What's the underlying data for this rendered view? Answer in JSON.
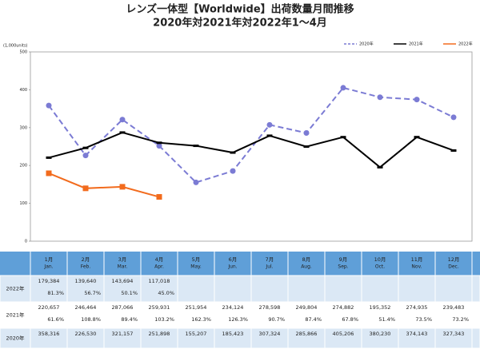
{
  "chart_data": {
    "type": "line",
    "title": "レンズ一体型【Worldwide】出荷数量月間推移",
    "subtitle": "2020年対2021年対2022年1～4月",
    "y_unit_label": "(1,000units)",
    "categories": [
      "1月",
      "2月",
      "3月",
      "4月",
      "5月",
      "6月",
      "7月",
      "8月",
      "9月",
      "10月",
      "11月",
      "12月"
    ],
    "categories_en": [
      "Jan.",
      "Feb.",
      "Mar.",
      "Apr.",
      "May.",
      "Jun.",
      "Jul.",
      "Aug.",
      "Sep.",
      "Oct.",
      "Nov.",
      "Dec."
    ],
    "ylim": [
      0,
      500
    ],
    "yticks": [
      0,
      100,
      200,
      300,
      400,
      500
    ],
    "grid": false,
    "legend": "top-right",
    "series": [
      {
        "name": "2020年",
        "color": "#7b7bd4",
        "dash": true,
        "marker": "circle",
        "values": [
          358.316,
          226.53,
          321.157,
          251.898,
          155.207,
          185.423,
          307.324,
          285.866,
          405.206,
          380.23,
          374.143,
          327.343
        ],
        "value_labels": [
          "358,316",
          "226,530",
          "321,157",
          "251,898",
          "155,207",
          "185,423",
          "307,324",
          "285,866",
          "405,206",
          "380,230",
          "374,143",
          "327,343"
        ]
      },
      {
        "name": "2021年",
        "color": "#000000",
        "dash": false,
        "marker": "dash",
        "values": [
          220.657,
          246.464,
          287.066,
          259.931,
          251.954,
          234.124,
          278.598,
          249.804,
          274.882,
          195.352,
          274.935,
          239.483
        ],
        "value_labels": [
          "220,657",
          "246,464",
          "287,066",
          "259,931",
          "251,954",
          "234,124",
          "278,598",
          "249,804",
          "274,882",
          "195,352",
          "274,935",
          "239,483"
        ],
        "change_labels": [
          "61.6%",
          "108.8%",
          "89.4%",
          "103.2%",
          "162.3%",
          "126.3%",
          "90.7%",
          "87.4%",
          "67.8%",
          "51.4%",
          "73.5%",
          "73.2%"
        ]
      },
      {
        "name": "2022年",
        "color": "#f26b1d",
        "dash": false,
        "marker": "square",
        "values": [
          179.384,
          139.64,
          143.694,
          117.018,
          null,
          null,
          null,
          null,
          null,
          null,
          null,
          null
        ],
        "value_labels": [
          "179,384",
          "139,640",
          "143,694",
          "117,018",
          null,
          null,
          null,
          null,
          null,
          null,
          null,
          null
        ],
        "change_labels": [
          "81.3%",
          "56.7%",
          "50.1%",
          "45.0%",
          null,
          null,
          null,
          null,
          null,
          null,
          null,
          null
        ]
      }
    ]
  }
}
